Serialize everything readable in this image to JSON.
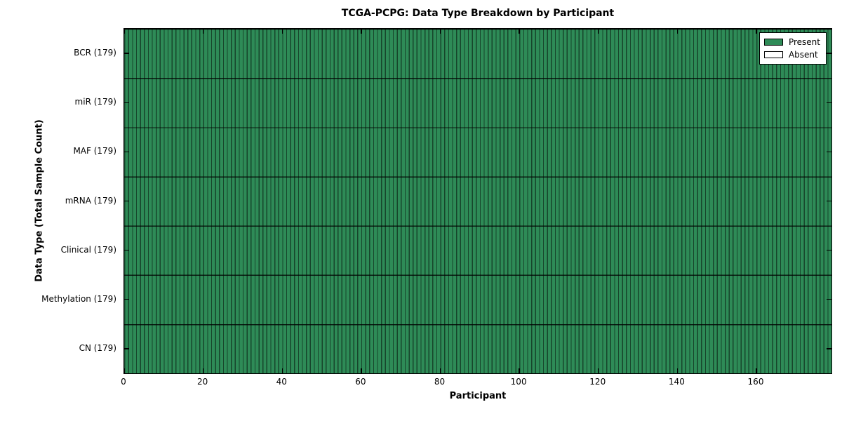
{
  "chart_data": {
    "type": "heatmap",
    "title": "TCGA-PCPG: Data Type Breakdown by Participant",
    "xlabel": "Participant",
    "ylabel": "Data Type (Total Sample Count)",
    "x_range": [
      0,
      179
    ],
    "x_ticks": [
      0,
      20,
      40,
      60,
      80,
      100,
      120,
      140,
      160
    ],
    "n_participants": 179,
    "rows": [
      {
        "label": "BCR (179)",
        "name": "BCR",
        "total_samples": 179,
        "present": 179,
        "absent": 0
      },
      {
        "label": "miR (179)",
        "name": "miR",
        "total_samples": 179,
        "present": 179,
        "absent": 0
      },
      {
        "label": "MAF (179)",
        "name": "MAF",
        "total_samples": 179,
        "present": 179,
        "absent": 0
      },
      {
        "label": "mRNA (179)",
        "name": "mRNA",
        "total_samples": 179,
        "present": 179,
        "absent": 0
      },
      {
        "label": "Clinical (179)",
        "name": "Clinical",
        "total_samples": 179,
        "present": 179,
        "absent": 0
      },
      {
        "label": "Methylation (179)",
        "name": "Methylation",
        "total_samples": 179,
        "present": 179,
        "absent": 0
      },
      {
        "label": "CN (179)",
        "name": "CN",
        "total_samples": 179,
        "present": 179,
        "absent": 0
      }
    ],
    "legend": {
      "position": "upper right",
      "items": [
        {
          "label": "Present",
          "color": "#2E8B57"
        },
        {
          "label": "Absent",
          "color": "#FFFFFF"
        }
      ]
    },
    "colors": {
      "present_fill": "#2E8B57",
      "absent_fill": "#FFFFFF",
      "cell_edge": "#000000",
      "row_divider": "#000000",
      "background": "#FFFFFF"
    },
    "grid": false,
    "tick_direction": "in"
  }
}
